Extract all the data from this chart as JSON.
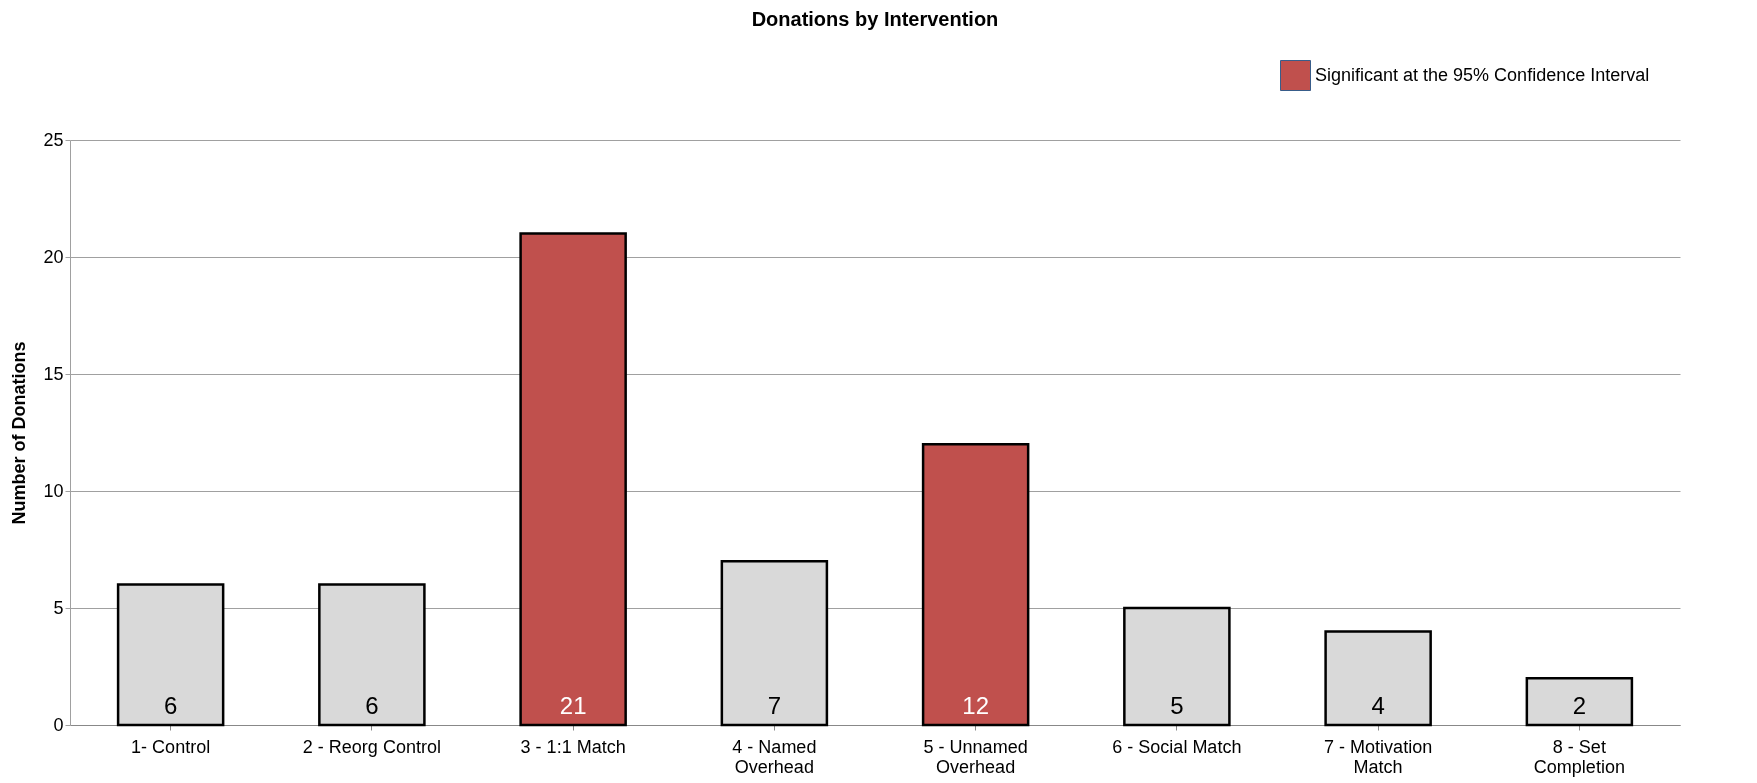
{
  "chart_data": {
    "type": "bar",
    "title": "Donations by Intervention",
    "ylabel": "Number of Donations",
    "categories": [
      "1- Control",
      "2 - Reorg Control",
      "3 - 1:1 Match",
      "4 - Named\nOverhead",
      "5 - Unnamed\nOverhead",
      "6 - Social Match",
      "7 - Motivation\nMatch",
      "8 - Set\nCompletion"
    ],
    "series": [
      {
        "color": "#d9d9d9",
        "values": [
          6,
          6,
          null,
          7,
          null,
          5,
          4,
          2
        ]
      },
      {
        "name": "Significant at the 95% Confidence Interval",
        "color": "#c0504d",
        "values": [
          null,
          null,
          21,
          null,
          12,
          null,
          null,
          null
        ]
      }
    ],
    "ylim": [
      0,
      25
    ],
    "yticks": [
      0,
      5,
      10,
      15,
      20,
      25
    ],
    "grid": "y",
    "legend": "top right",
    "data_labels": true
  }
}
